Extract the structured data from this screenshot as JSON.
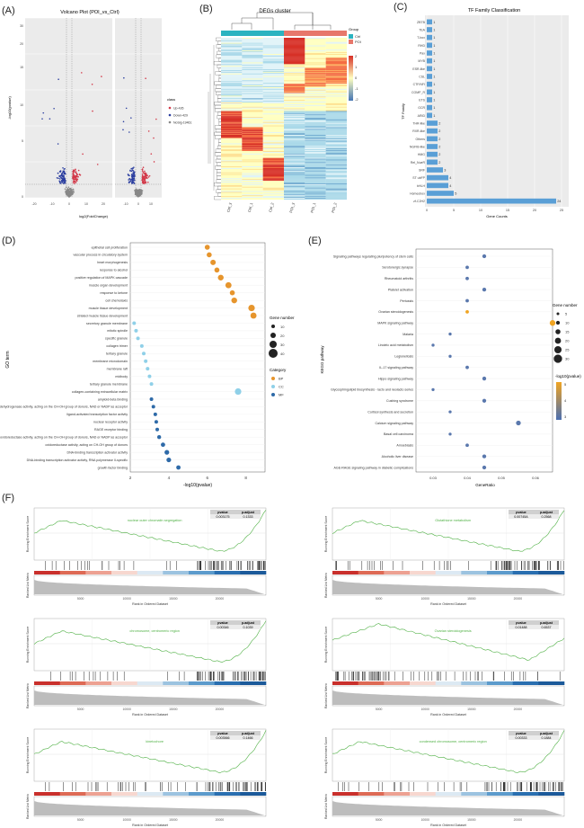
{
  "panels": {
    "A": "(A)",
    "B": "(B)",
    "C": "(C)",
    "D": "(D)",
    "E": "(E)",
    "F": "(F)"
  },
  "chart_data": [
    {
      "id": "A",
      "type": "scatter",
      "title": "Volcano Plot (POI_vs_Ctrl)",
      "xlabel": "log2(FoldChange)",
      "ylabel": "-log10(pvalue)",
      "legend_title": "class",
      "legend": [
        {
          "name": "Up-426",
          "color": "#d33a4a"
        },
        {
          "name": "Down-429",
          "color": "#2c3fa0"
        },
        {
          "name": "NoSig-19461",
          "color": "#888888"
        }
      ],
      "xticks": [
        "-20",
        "-10",
        "0",
        "10",
        "20",
        "-10",
        "0",
        "10"
      ],
      "yticks": [
        "0",
        "5",
        "10",
        "15",
        "20",
        "30"
      ]
    },
    {
      "id": "B",
      "type": "heatmap",
      "title": "DEGs cluster",
      "columns": [
        "Ctrl_3",
        "Ctrl_1",
        "Ctrl_2",
        "POI_3",
        "POI_1",
        "POI_2"
      ],
      "legend_title": "Group",
      "groups": [
        {
          "name": "Ctrl",
          "color": "#2bb3c0"
        },
        {
          "name": "POI",
          "color": "#e7776b"
        }
      ],
      "scale": [
        "2",
        "1",
        "0",
        "-1",
        "-2"
      ]
    },
    {
      "id": "C",
      "type": "bar",
      "title": "TF Family Classification",
      "xlabel": "Gene Counts",
      "ylabel": "TF Family",
      "categories": [
        "ZBTB",
        "TEA",
        "T-box",
        "RHD",
        "Pax",
        "MYB",
        "ESR-like",
        "CSL",
        "CTF/NFI",
        "COMP_R",
        "ETS",
        "GCR",
        "ARID",
        "THR-like",
        "RXR-like",
        "Others",
        "NGFIB-like",
        "HMG",
        "Rel_NueR",
        "SRF",
        "ST ubFP",
        "bHLH",
        "Homeobox",
        "zf-C2H2"
      ],
      "values": [
        1,
        1,
        1,
        1,
        1,
        1,
        1,
        1,
        1,
        1,
        1,
        1,
        1,
        2,
        2,
        2,
        2,
        2,
        2,
        3,
        4,
        4,
        5,
        24
      ],
      "xticks": [
        "0",
        "5",
        "10",
        "15",
        "20",
        "25"
      ],
      "xlim": [
        0,
        26
      ]
    },
    {
      "id": "D",
      "type": "scatter",
      "xlabel": "-log10(pvalue)",
      "ylabel": "GO term",
      "xticks": [
        "2",
        "4",
        "6",
        "8"
      ],
      "xlim": [
        2,
        9
      ],
      "size_legend_title": "Gene number",
      "size_legend": [
        "10",
        "20",
        "30",
        "40"
      ],
      "category_legend_title": "Category",
      "categories_legend": [
        {
          "name": "BP",
          "color": "#e6952d"
        },
        {
          "name": "CC",
          "color": "#8fd0e8"
        },
        {
          "name": "MF",
          "color": "#2e6aa8"
        }
      ],
      "terms": [
        {
          "label": "epithelial cell proliferation",
          "x": 6.0,
          "n": 18,
          "cat": "BP"
        },
        {
          "label": "vascular process in circulatory system",
          "x": 6.1,
          "n": 18,
          "cat": "BP"
        },
        {
          "label": "heart morphogenesis",
          "x": 6.3,
          "n": 20,
          "cat": "BP"
        },
        {
          "label": "response to alcohol",
          "x": 6.5,
          "n": 18,
          "cat": "BP"
        },
        {
          "label": "positive regulation of MAPK cascade",
          "x": 6.7,
          "n": 22,
          "cat": "BP"
        },
        {
          "label": "muscle organ development",
          "x": 7.1,
          "n": 24,
          "cat": "BP"
        },
        {
          "label": "response to ketone",
          "x": 7.3,
          "n": 18,
          "cat": "BP"
        },
        {
          "label": "cell chemotaxis",
          "x": 7.4,
          "n": 22,
          "cat": "BP"
        },
        {
          "label": "muscle tissue development",
          "x": 8.3,
          "n": 26,
          "cat": "BP"
        },
        {
          "label": "striated muscle tissue development",
          "x": 8.4,
          "n": 24,
          "cat": "BP"
        },
        {
          "label": "secretory granule membrane",
          "x": 2.2,
          "n": 10,
          "cat": "CC"
        },
        {
          "label": "mitotic spindle",
          "x": 2.3,
          "n": 10,
          "cat": "CC"
        },
        {
          "label": "specific granule",
          "x": 2.4,
          "n": 10,
          "cat": "CC"
        },
        {
          "label": "collagen trimer",
          "x": 2.6,
          "n": 10,
          "cat": "CC"
        },
        {
          "label": "tertiary granule",
          "x": 2.7,
          "n": 10,
          "cat": "CC"
        },
        {
          "label": "membrane microdomain",
          "x": 2.8,
          "n": 10,
          "cat": "CC"
        },
        {
          "label": "membrane raft",
          "x": 2.9,
          "n": 10,
          "cat": "CC"
        },
        {
          "label": "midbody",
          "x": 3.0,
          "n": 10,
          "cat": "CC"
        },
        {
          "label": "tertiary granule membrane",
          "x": 3.1,
          "n": 10,
          "cat": "CC"
        },
        {
          "label": "collagen-containing extracellular matrix",
          "x": 7.6,
          "n": 26,
          "cat": "CC"
        },
        {
          "label": "amyloid-beta binding",
          "x": 3.1,
          "n": 10,
          "cat": "MF"
        },
        {
          "label": "steroid dehydrogenase activity, acting on the CH-OH group of donors, NAD or NADP as acceptor",
          "x": 3.2,
          "n": 10,
          "cat": "MF"
        },
        {
          "label": "ligand-activated transcription factor activity",
          "x": 3.3,
          "n": 10,
          "cat": "MF"
        },
        {
          "label": "nuclear receptor activity",
          "x": 3.35,
          "n": 10,
          "cat": "MF"
        },
        {
          "label": "RAGE receptor binding",
          "x": 3.4,
          "n": 10,
          "cat": "MF"
        },
        {
          "label": "oxidoreductase activity, acting on the CH-OH group of donors, NAD or NADP as acceptor",
          "x": 3.5,
          "n": 12,
          "cat": "MF"
        },
        {
          "label": "oxidoreductase activity, acting on CH-OH group of donors",
          "x": 3.7,
          "n": 14,
          "cat": "MF"
        },
        {
          "label": "DNA-binding transcription activator activity",
          "x": 3.9,
          "n": 16,
          "cat": "MF"
        },
        {
          "label": "DNA-binding transcription activator activity, RNA polymerase II-specific",
          "x": 4.0,
          "n": 16,
          "cat": "MF"
        },
        {
          "label": "growth factor binding",
          "x": 4.5,
          "n": 14,
          "cat": "MF"
        }
      ]
    },
    {
      "id": "E",
      "type": "scatter",
      "xlabel": "GeneRatio",
      "ylabel": "KEGG pathway",
      "xticks": [
        "0.03",
        "0.04",
        "0.05",
        "0.06"
      ],
      "xlim": [
        0.025,
        0.065
      ],
      "size_legend_title": "Gene number",
      "size_legend": [
        "5",
        "10",
        "15",
        "20",
        "25",
        "30"
      ],
      "color_legend_title": "-log10(pvalue)",
      "color_legend": [
        "5",
        "4",
        "3"
      ],
      "terms": [
        {
          "label": "Signaling pathways regulating pluripotency of stem cells",
          "x": 0.045,
          "n": 10,
          "p": 3.0
        },
        {
          "label": "Serotonergic synapse",
          "x": 0.04,
          "n": 8,
          "p": 3.0
        },
        {
          "label": "Rheumatoid arthritis",
          "x": 0.04,
          "n": 8,
          "p": 3.0
        },
        {
          "label": "Platelet activation",
          "x": 0.045,
          "n": 10,
          "p": 3.0
        },
        {
          "label": "Pertussis",
          "x": 0.04,
          "n": 8,
          "p": 3.0
        },
        {
          "label": "Ovarian steroidogenesis",
          "x": 0.04,
          "n": 8,
          "p": 4.6
        },
        {
          "label": "MAPK signaling pathway",
          "x": 0.065,
          "n": 18,
          "p": 5.0
        },
        {
          "label": "Malaria",
          "x": 0.035,
          "n": 6,
          "p": 3.0
        },
        {
          "label": "Linoleic acid metabolism",
          "x": 0.03,
          "n": 6,
          "p": 3.0
        },
        {
          "label": "Legionellosis",
          "x": 0.035,
          "n": 6,
          "p": 3.0
        },
        {
          "label": "IL-17 signaling pathway",
          "x": 0.04,
          "n": 8,
          "p": 3.0
        },
        {
          "label": "Hippo signaling pathway",
          "x": 0.045,
          "n": 10,
          "p": 3.0
        },
        {
          "label": "Glycosphingolipid biosynthesis - lacto and neolacto series",
          "x": 0.03,
          "n": 6,
          "p": 3.0
        },
        {
          "label": "Cushing syndrome",
          "x": 0.045,
          "n": 10,
          "p": 3.0
        },
        {
          "label": "Cortisol synthesis and secretion",
          "x": 0.035,
          "n": 6,
          "p": 3.0
        },
        {
          "label": "Calcium signaling pathway",
          "x": 0.055,
          "n": 14,
          "p": 3.0
        },
        {
          "label": "Basal cell carcinoma",
          "x": 0.035,
          "n": 6,
          "p": 3.0
        },
        {
          "label": "Amoebiasis",
          "x": 0.04,
          "n": 8,
          "p": 3.0
        },
        {
          "label": "Alcoholic liver disease",
          "x": 0.045,
          "n": 10,
          "p": 3.0
        },
        {
          "label": "AGE-RAGE signaling pathway in diabetic complications",
          "x": 0.045,
          "n": 10,
          "p": 3.0
        }
      ]
    },
    {
      "id": "F",
      "type": "line",
      "ylabel_top": "Running Enrichment Score",
      "ylabel_bottom": "Ranked List Metric",
      "xlabel": "Rank in Ordered Dataset",
      "xticks": [
        "5000",
        "10000",
        "15000",
        "20000"
      ],
      "plots": [
        {
          "term": "nuclear outer chromatin segregation",
          "pvalue": "0.003175",
          "padjust": "0.1333",
          "shape": "late"
        },
        {
          "term": "Glutathione metabolism",
          "pvalue": "0.00745A",
          "padjust": "0.2568",
          "shape": "late"
        },
        {
          "term": "chromosome, centromeric region",
          "pvalue": "0.00346",
          "padjust": "0.1039",
          "shape": "late"
        },
        {
          "term": "Ovarian steroidogenesis",
          "pvalue": "0.01488",
          "padjust": "0.6537",
          "shape": "early"
        },
        {
          "term": "kinetochore",
          "pvalue": "0.003566",
          "padjust": "0.1466",
          "shape": "late"
        },
        {
          "term": "condensed chromosome, centromeric region",
          "pvalue": "0.00333",
          "padjust": "0.1884",
          "shape": "late"
        }
      ]
    }
  ]
}
